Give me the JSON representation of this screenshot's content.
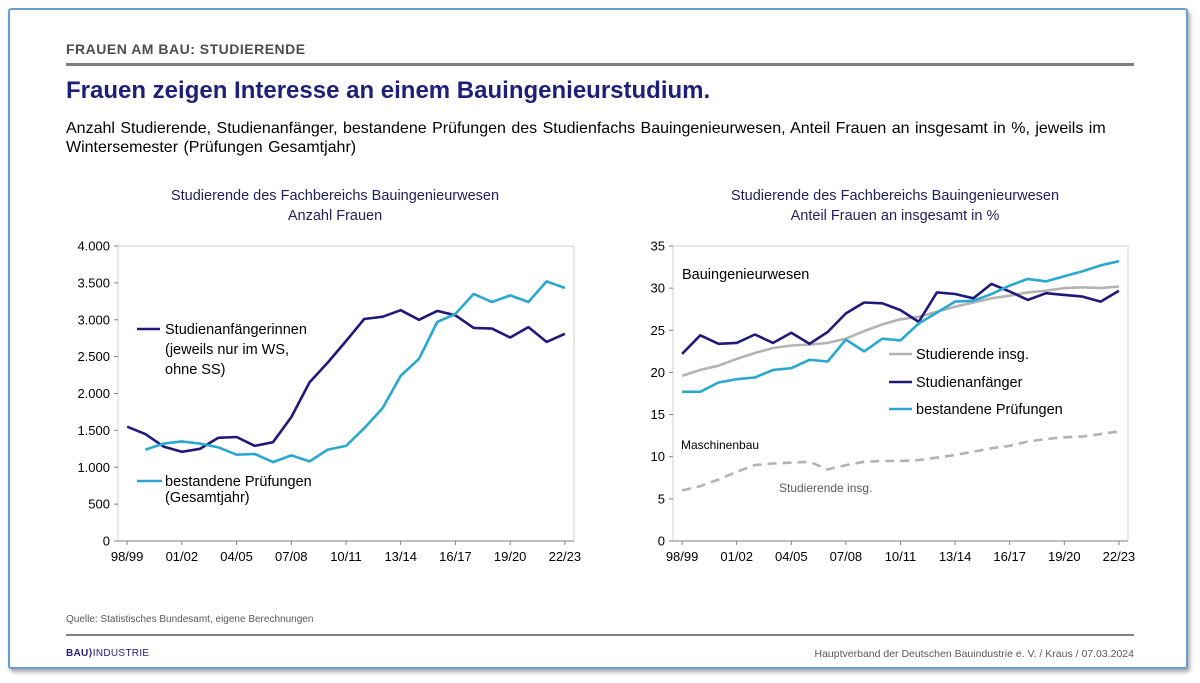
{
  "header": {
    "kicker": "FRAUEN AM BAU: STUDIERENDE",
    "title": "Frauen zeigen Interesse an einem Bauingenieurstudium.",
    "subtitle": "Anzahl Studierende, Studienanfänger, bestandene Prüfungen des Studienfachs Bauingenieurwesen, Anteil Frauen an insgesamt in %, jeweils im Wintersemester (Prüfungen Gesamtjahr)"
  },
  "chart_data": [
    {
      "type": "line",
      "title": "Studierende des Fachbereichs Bauingenieurwesen",
      "subtitle": "Anzahl Frauen",
      "categories": [
        "98/99",
        "99/00",
        "00/01",
        "01/02",
        "02/03",
        "03/04",
        "04/05",
        "05/06",
        "06/07",
        "07/08",
        "08/09",
        "09/10",
        "10/11",
        "11/12",
        "12/13",
        "13/14",
        "14/15",
        "15/16",
        "16/17",
        "17/18",
        "18/19",
        "19/20",
        "20/21",
        "21/22",
        "22/23"
      ],
      "tick_labels": [
        "98/99",
        "01/02",
        "04/05",
        "07/08",
        "10/11",
        "13/14",
        "16/17",
        "19/20",
        "22/23"
      ],
      "ylim": [
        0,
        4000
      ],
      "yticks": [
        0,
        500,
        1000,
        1500,
        2000,
        2500,
        3000,
        3500,
        4000
      ],
      "ytick_labels": [
        "0",
        "500",
        "1.000",
        "1.500",
        "2.000",
        "2.500",
        "3.000",
        "3.500",
        "4.000"
      ],
      "series": [
        {
          "name": "Studienanfängerinnen (jeweils nur im WS, ohne SS)",
          "label_lines": [
            "Studienanfängerinnen",
            "(jeweils nur im WS,",
            "ohne SS)"
          ],
          "color": "#1f1a7a",
          "dashed": false,
          "values": [
            1550,
            1450,
            1280,
            1210,
            1250,
            1400,
            1410,
            1290,
            1340,
            1680,
            2150,
            2420,
            2710,
            3010,
            3040,
            3130,
            3000,
            3120,
            3060,
            2890,
            2880,
            2760,
            2900,
            2700,
            2810
          ]
        },
        {
          "name": "bestandene Prüfungen (Gesamtjahr)",
          "label_lines": [
            "bestandene Prüfungen",
            "(Gesamtjahr)"
          ],
          "color": "#2aa8d2",
          "dashed": false,
          "values": [
            null,
            1240,
            1320,
            1350,
            1320,
            1270,
            1170,
            1180,
            1070,
            1160,
            1080,
            1240,
            1290,
            1530,
            1800,
            2240,
            2470,
            2970,
            3080,
            3350,
            3240,
            3330,
            3240,
            3520,
            3430
          ]
        }
      ]
    },
    {
      "type": "line",
      "title": "Studierende des Fachbereichs Bauingenieurwesen",
      "subtitle": "Anteil Frauen an insgesamt in %",
      "categories": [
        "98/99",
        "99/00",
        "00/01",
        "01/02",
        "02/03",
        "03/04",
        "04/05",
        "05/06",
        "06/07",
        "07/08",
        "08/09",
        "09/10",
        "10/11",
        "11/12",
        "12/13",
        "13/14",
        "14/15",
        "15/16",
        "16/17",
        "17/18",
        "18/19",
        "19/20",
        "20/21",
        "21/22",
        "22/23"
      ],
      "tick_labels": [
        "98/99",
        "01/02",
        "04/05",
        "07/08",
        "10/11",
        "13/14",
        "16/17",
        "19/20",
        "22/23"
      ],
      "ylim": [
        0,
        35
      ],
      "yticks": [
        0,
        5,
        10,
        15,
        20,
        25,
        30,
        35
      ],
      "ytick_labels": [
        "0",
        "5",
        "10",
        "15",
        "20",
        "25",
        "30",
        "35"
      ],
      "annotations": [
        "Bauingenieurwesen",
        "Maschinenbau",
        "Studierende insg."
      ],
      "series": [
        {
          "name": "Studierende insg.",
          "color": "#b3b3b3",
          "dashed": false,
          "values": [
            19.6,
            20.3,
            20.8,
            21.6,
            22.3,
            22.9,
            23.2,
            23.3,
            23.5,
            24.0,
            24.9,
            25.7,
            26.3,
            26.6,
            27.2,
            27.8,
            28.3,
            28.8,
            29.1,
            29.5,
            29.7,
            30.0,
            30.1,
            30.0,
            30.2
          ]
        },
        {
          "name": "Studienanfänger",
          "color": "#1f1a7a",
          "dashed": false,
          "values": [
            22.2,
            24.4,
            23.4,
            23.5,
            24.5,
            23.5,
            24.7,
            23.4,
            24.8,
            27.0,
            28.3,
            28.2,
            27.4,
            26.0,
            29.5,
            29.3,
            28.8,
            30.5,
            29.6,
            28.6,
            29.4,
            29.2,
            29.0,
            28.4,
            29.7
          ]
        },
        {
          "name": "bestandene Prüfungen",
          "color": "#2aa8d2",
          "dashed": false,
          "values": [
            17.7,
            17.7,
            18.8,
            19.2,
            19.4,
            20.3,
            20.5,
            21.5,
            21.3,
            23.9,
            22.5,
            24.0,
            23.8,
            25.8,
            27.1,
            28.4,
            28.5,
            29.3,
            30.3,
            31.1,
            30.8,
            31.4,
            32.0,
            32.7,
            33.2
          ]
        },
        {
          "name": "Maschinenbau – Studierende insg.",
          "color": "#b3b3b3",
          "dashed": true,
          "legend": false,
          "values": [
            6.0,
            6.5,
            7.3,
            8.2,
            9.0,
            9.2,
            9.3,
            9.4,
            8.5,
            9.0,
            9.4,
            9.5,
            9.5,
            9.6,
            9.9,
            10.2,
            10.6,
            11.0,
            11.3,
            11.8,
            12.1,
            12.3,
            12.4,
            12.7,
            13.0
          ]
        }
      ]
    }
  ],
  "footer": {
    "source": "Quelle: Statistisches Bundesamt, eigene Berechnungen",
    "logo_left": "BAU",
    "logo_mark": "⟩",
    "logo_right": "INDUSTRIE",
    "credit": "Hauptverband  der Deutschen Bauindustrie e. V. / Kraus / 07.03.2024"
  }
}
